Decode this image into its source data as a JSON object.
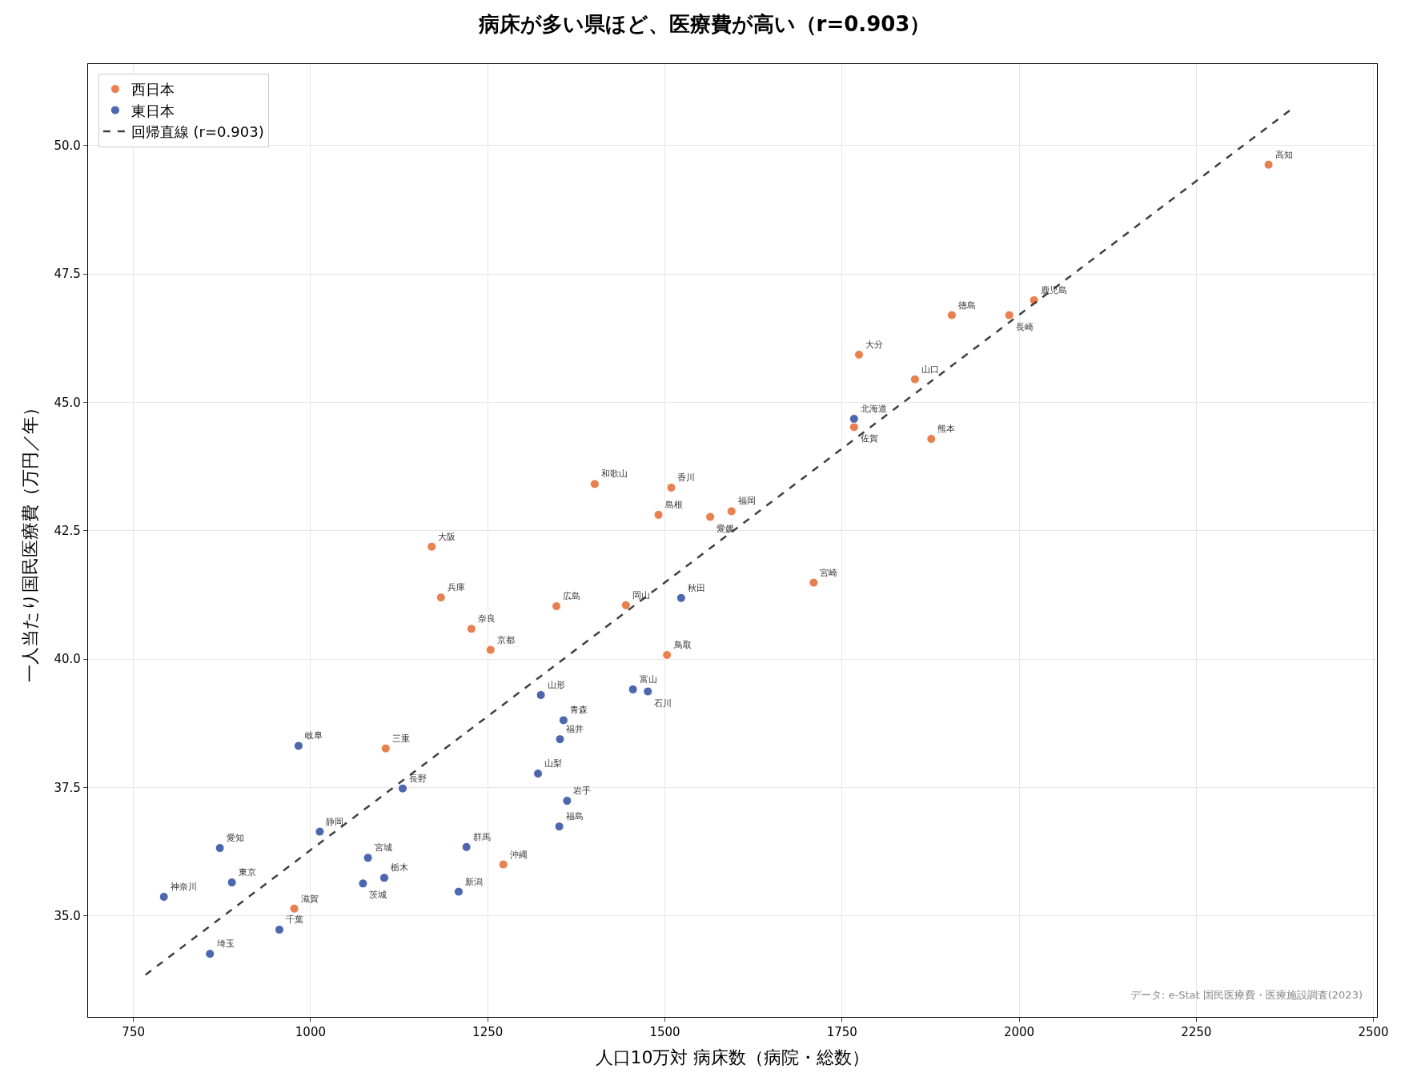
{
  "chart_data": {
    "type": "scatter",
    "title": "病床が多い県ほど、医療費が高い（r=0.903）",
    "xlabel": "人口10万対 病床数（病院・総数）",
    "ylabel": "一人当たり国民医療費（万円／年）",
    "xlim": [
      686,
      2505
    ],
    "ylim": [
      33.03,
      51.59
    ],
    "xticks": [
      750,
      1000,
      1250,
      1500,
      1750,
      2000,
      2250,
      2500
    ],
    "yticks": [
      {
        "value": 35,
        "label": "35.0"
      },
      {
        "value": 37.5,
        "label": "37.5"
      },
      {
        "value": 40,
        "label": "40.0"
      },
      {
        "value": 42.5,
        "label": "42.5"
      },
      {
        "value": 45,
        "label": "45.0"
      },
      {
        "value": 47.5,
        "label": "47.5"
      },
      {
        "value": 50,
        "label": "50.0"
      }
    ],
    "grid": true,
    "legend": "top left",
    "series": [
      {
        "name": "西日本",
        "color": "#e8804f",
        "marker": "circle",
        "x": [
          2352,
          2021,
          1986,
          1905,
          1774,
          1853,
          1767,
          1876,
          1401,
          1509,
          1491,
          1564,
          1594,
          1171,
          1710,
          1184,
          1347,
          1445,
          1227,
          1254,
          1503,
          1106,
          1272,
          977
        ],
        "values": [
          49.63,
          46.99,
          46.7,
          46.7,
          45.93,
          45.45,
          44.52,
          44.29,
          43.41,
          43.34,
          42.81,
          42.77,
          42.88,
          42.19,
          41.49,
          41.2,
          41.03,
          41.05,
          40.59,
          40.18,
          40.08,
          38.26,
          36.0,
          35.14
        ]
      },
      {
        "name": "東日本",
        "color": "#4c67ae",
        "marker": "circle",
        "x": [
          1767,
          1523,
          1455,
          1476,
          1325,
          1357,
          1352,
          983,
          1321,
          1130,
          1362,
          1351,
          1013,
          872,
          1220,
          1081,
          889,
          1074,
          1104,
          1209,
          793,
          956,
          858
        ],
        "values": [
          44.68,
          41.19,
          39.41,
          39.37,
          39.3,
          38.81,
          38.44,
          38.31,
          37.77,
          37.48,
          37.24,
          36.74,
          36.64,
          36.32,
          36.34,
          36.13,
          35.65,
          35.63,
          35.74,
          35.47,
          35.37,
          34.73,
          34.26
        ]
      },
      {
        "name": "回帰直線 (r=0.903)",
        "color": "#404040",
        "type": "line",
        "line_style": "dashed",
        "x": [
          767,
          2387
        ],
        "values": [
          33.85,
          50.74
        ]
      }
    ],
    "annotations": [
      {
        "text": "高知",
        "x": 2352,
        "y": 49.63
      },
      {
        "text": "鹿児島",
        "x": 2021,
        "y": 46.99
      },
      {
        "text": "長崎",
        "x": 1986,
        "y": 46.7
      },
      {
        "text": "徳島",
        "x": 1905,
        "y": 46.7
      },
      {
        "text": "大分",
        "x": 1774,
        "y": 45.93
      },
      {
        "text": "山口",
        "x": 1853,
        "y": 45.45
      },
      {
        "text": "佐賀",
        "x": 1767,
        "y": 44.52
      },
      {
        "text": "熊本",
        "x": 1876,
        "y": 44.29
      },
      {
        "text": "和歌山",
        "x": 1401,
        "y": 43.41
      },
      {
        "text": "香川",
        "x": 1509,
        "y": 43.34
      },
      {
        "text": "島根",
        "x": 1491,
        "y": 42.81
      },
      {
        "text": "愛媛",
        "x": 1564,
        "y": 42.77
      },
      {
        "text": "福岡",
        "x": 1594,
        "y": 42.88
      },
      {
        "text": "大阪",
        "x": 1171,
        "y": 42.19
      },
      {
        "text": "宮崎",
        "x": 1710,
        "y": 41.49
      },
      {
        "text": "兵庫",
        "x": 1184,
        "y": 41.2
      },
      {
        "text": "広島",
        "x": 1347,
        "y": 41.03
      },
      {
        "text": "岡山",
        "x": 1445,
        "y": 41.05
      },
      {
        "text": "奈良",
        "x": 1227,
        "y": 40.59
      },
      {
        "text": "京都",
        "x": 1254,
        "y": 40.18
      },
      {
        "text": "鳥取",
        "x": 1503,
        "y": 40.08
      },
      {
        "text": "三重",
        "x": 1106,
        "y": 38.26
      },
      {
        "text": "沖縄",
        "x": 1272,
        "y": 36.0
      },
      {
        "text": "滋賀",
        "x": 977,
        "y": 35.14
      },
      {
        "text": "北海道",
        "x": 1767,
        "y": 44.68
      },
      {
        "text": "秋田",
        "x": 1523,
        "y": 41.19
      },
      {
        "text": "富山",
        "x": 1455,
        "y": 39.41
      },
      {
        "text": "石川",
        "x": 1476,
        "y": 39.37
      },
      {
        "text": "山形",
        "x": 1325,
        "y": 39.3
      },
      {
        "text": "青森",
        "x": 1357,
        "y": 38.81
      },
      {
        "text": "福井",
        "x": 1352,
        "y": 38.44
      },
      {
        "text": "岐阜",
        "x": 983,
        "y": 38.31
      },
      {
        "text": "山梨",
        "x": 1321,
        "y": 37.77
      },
      {
        "text": "長野",
        "x": 1130,
        "y": 37.48
      },
      {
        "text": "岩手",
        "x": 1362,
        "y": 37.24
      },
      {
        "text": "福島",
        "x": 1351,
        "y": 36.74
      },
      {
        "text": "静岡",
        "x": 1013,
        "y": 36.64
      },
      {
        "text": "愛知",
        "x": 872,
        "y": 36.32
      },
      {
        "text": "群馬",
        "x": 1220,
        "y": 36.34
      },
      {
        "text": "宮城",
        "x": 1081,
        "y": 36.13
      },
      {
        "text": "東京",
        "x": 889,
        "y": 35.65
      },
      {
        "text": "茨城",
        "x": 1074,
        "y": 35.63
      },
      {
        "text": "栃木",
        "x": 1104,
        "y": 35.74
      },
      {
        "text": "新潟",
        "x": 1209,
        "y": 35.47
      },
      {
        "text": "神奈川",
        "x": 793,
        "y": 35.37
      },
      {
        "text": "千葉",
        "x": 956,
        "y": 34.73
      },
      {
        "text": "埼玉",
        "x": 858,
        "y": 34.26
      },
      "データ: e-Stat 国民医療費・医療施設調査(2023)"
    ]
  }
}
